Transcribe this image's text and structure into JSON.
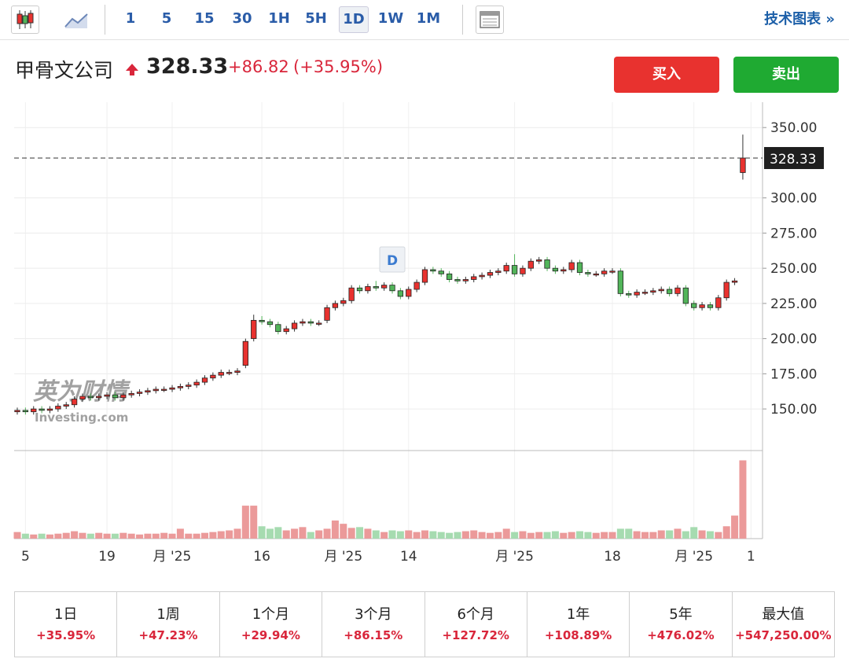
{
  "toolbar": {
    "intervals": [
      "1",
      "5",
      "15",
      "30",
      "1H",
      "5H",
      "1D",
      "1W",
      "1M"
    ],
    "link": "技术图表 »"
  },
  "header": {
    "name": "甲骨文公司",
    "change": "+86.82",
    "change_pct": "(+35.95%)",
    "buy": "买入",
    "sell": "卖出"
  },
  "chart_data": {
    "type": "candlestick",
    "last_price": 328.33,
    "watermark": [
      "英为财情",
      "Investing.com"
    ],
    "dividend_marker": "D",
    "ylim": [
      121,
      368
    ],
    "yticks": [
      {
        "value": 150,
        "label": "150.00"
      },
      {
        "value": 175,
        "label": "175.00"
      },
      {
        "value": 200,
        "label": "200.00"
      },
      {
        "value": 225,
        "label": "225.00"
      },
      {
        "value": 250,
        "label": "250.00"
      },
      {
        "value": 275,
        "label": "275.00"
      },
      {
        "value": 300,
        "label": "300.00"
      },
      {
        "value": 350,
        "label": "350.00"
      }
    ],
    "vlim": [
      0,
      105
    ],
    "grid": true,
    "up_color": "#e8322f",
    "down_color": "#52b55a",
    "volume_up_color": "#eb9a9a",
    "volume_down_color": "#a6dbb0",
    "categories": [
      null,
      "5",
      null,
      null,
      null,
      null,
      null,
      null,
      null,
      null,
      null,
      "19",
      null,
      null,
      null,
      null,
      null,
      null,
      null,
      "月 '25",
      null,
      null,
      null,
      null,
      null,
      null,
      null,
      null,
      null,
      null,
      "16",
      null,
      null,
      null,
      null,
      null,
      null,
      null,
      null,
      null,
      "月 '25",
      null,
      null,
      null,
      null,
      null,
      null,
      null,
      "14",
      null,
      null,
      null,
      null,
      null,
      null,
      null,
      null,
      null,
      null,
      null,
      null,
      "月 '25",
      null,
      null,
      null,
      null,
      null,
      null,
      null,
      null,
      null,
      null,
      null,
      "18",
      null,
      null,
      null,
      null,
      null,
      null,
      null,
      null,
      null,
      "月 '25",
      null,
      null,
      null,
      null,
      null,
      null,
      "1"
    ],
    "open": [
      148,
      149,
      148,
      150,
      149,
      150,
      152,
      153,
      157,
      159,
      158,
      159,
      160,
      158,
      160,
      161,
      162,
      163,
      164,
      164,
      165,
      166,
      167,
      169,
      172,
      174,
      176,
      176,
      181,
      200,
      213,
      212,
      210,
      205,
      207,
      211,
      212,
      211,
      213,
      222,
      225,
      227,
      236,
      234,
      237,
      236,
      238,
      234,
      230,
      235,
      240,
      249,
      248,
      246,
      242,
      241,
      242,
      244,
      245,
      247,
      248,
      252,
      246,
      250,
      255,
      256,
      250,
      248,
      249,
      254,
      247,
      246,
      246,
      248,
      248,
      232,
      231,
      233,
      233,
      234,
      235,
      232,
      236,
      225,
      222,
      224,
      222,
      229,
      240,
      318,
      null
    ],
    "high": [
      151,
      151,
      152,
      152,
      152,
      154,
      155,
      159,
      161,
      161,
      161,
      162,
      162,
      162,
      163,
      164,
      165,
      166,
      166,
      167,
      168,
      169,
      171,
      174,
      176,
      178,
      178,
      179,
      200,
      217,
      216,
      214,
      212,
      209,
      213,
      214,
      214,
      213,
      224,
      227,
      229,
      238,
      238,
      239,
      241,
      240,
      240,
      236,
      237,
      242,
      251,
      251,
      250,
      248,
      244,
      244,
      246,
      247,
      249,
      250,
      254,
      260,
      252,
      257,
      258,
      258,
      252,
      251,
      256,
      256,
      249,
      248,
      250,
      250,
      250,
      234,
      235,
      235,
      236,
      237,
      237,
      238,
      238,
      227,
      226,
      226,
      231,
      242,
      243,
      345,
      null
    ],
    "low": [
      146,
      146,
      146,
      147,
      147,
      148,
      150,
      151,
      155,
      156,
      156,
      157,
      156,
      156,
      158,
      159,
      160,
      161,
      162,
      162,
      163,
      164,
      165,
      167,
      170,
      172,
      174,
      174,
      179,
      198,
      210,
      208,
      203,
      203,
      205,
      209,
      209,
      209,
      211,
      220,
      223,
      225,
      232,
      232,
      234,
      234,
      232,
      228,
      228,
      233,
      238,
      246,
      244,
      240,
      239,
      239,
      240,
      242,
      243,
      245,
      246,
      244,
      244,
      248,
      253,
      248,
      246,
      246,
      247,
      245,
      244,
      244,
      244,
      246,
      230,
      229,
      229,
      231,
      231,
      232,
      230,
      230,
      223,
      220,
      220,
      220,
      220,
      227,
      238,
      313,
      null
    ],
    "close": [
      149,
      148,
      150,
      149,
      150,
      152,
      153,
      157,
      159,
      158,
      159,
      160,
      158,
      160,
      161,
      162,
      163,
      164,
      164,
      165,
      166,
      167,
      169,
      172,
      174,
      176,
      176,
      177,
      198,
      213,
      212,
      210,
      205,
      207,
      211,
      212,
      211,
      211,
      222,
      225,
      227,
      236,
      234,
      237,
      236,
      238,
      234,
      230,
      235,
      240,
      249,
      248,
      246,
      242,
      241,
      242,
      244,
      245,
      247,
      248,
      252,
      246,
      250,
      255,
      256,
      250,
      248,
      249,
      254,
      247,
      246,
      246,
      248,
      248,
      232,
      231,
      233,
      233,
      234,
      235,
      232,
      236,
      225,
      222,
      224,
      222,
      229,
      240,
      241,
      328.33,
      null
    ],
    "volume": [
      8,
      6,
      5,
      6,
      5,
      6,
      7,
      9,
      7,
      6,
      7,
      6,
      6,
      7,
      6,
      5,
      6,
      6,
      7,
      6,
      12,
      6,
      6,
      7,
      8,
      9,
      10,
      12,
      40,
      40,
      15,
      12,
      14,
      10,
      12,
      14,
      8,
      10,
      12,
      22,
      18,
      13,
      14,
      12,
      10,
      8,
      10,
      9,
      10,
      8,
      10,
      9,
      8,
      7,
      8,
      9,
      10,
      8,
      7,
      8,
      12,
      8,
      9,
      7,
      8,
      8,
      9,
      7,
      8,
      9,
      8,
      7,
      8,
      8,
      12,
      12,
      9,
      8,
      8,
      10,
      10,
      12,
      9,
      14,
      10,
      9,
      8,
      15,
      28,
      95,
      null
    ]
  },
  "performance": [
    {
      "period": "1日",
      "change": "+35.95%"
    },
    {
      "period": "1周",
      "change": "+47.23%"
    },
    {
      "period": "1个月",
      "change": "+29.94%"
    },
    {
      "period": "3个月",
      "change": "+86.15%"
    },
    {
      "period": "6个月",
      "change": "+127.72%"
    },
    {
      "period": "1年",
      "change": "+108.89%"
    },
    {
      "period": "5年",
      "change": "+476.02%"
    },
    {
      "period": "最大值",
      "change": "+547,250.00%"
    }
  ]
}
